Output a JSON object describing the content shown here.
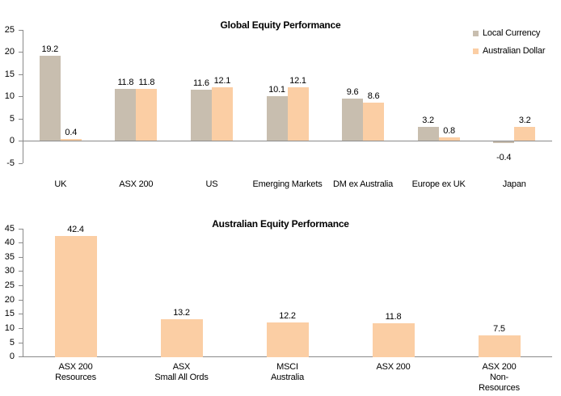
{
  "colors": {
    "local_currency": "#C8BEAF",
    "australian_dollar": "#FBCEA4",
    "axis_line": "#8A8A8A",
    "label_text": "#000000",
    "background": "#FFFFFF"
  },
  "chart_data": [
    {
      "type": "bar",
      "title": "Global Equity Performance",
      "categories": [
        "UK",
        "ASX 200",
        "US",
        "Emerging Markets",
        "DM ex Australia",
        "Europe ex UK",
        "Japan"
      ],
      "series": [
        {
          "name": "Local Currency",
          "color": "#C8BEAF",
          "values": [
            19.2,
            11.8,
            11.6,
            10.1,
            9.6,
            3.2,
            -0.4
          ]
        },
        {
          "name": "Australian Dollar",
          "color": "#FBCEA4",
          "values": [
            0.4,
            11.8,
            12.1,
            12.1,
            8.6,
            0.8,
            3.2
          ]
        }
      ],
      "ylim": [
        -5,
        25
      ],
      "yticks": [
        -5,
        0,
        5,
        10,
        15,
        20,
        25
      ],
      "grid": false,
      "legend_position": "top-right",
      "data_labels": true
    },
    {
      "type": "bar",
      "title": "Australian Equity Performance",
      "categories": [
        "ASX 200\nResources",
        "ASX\nSmall All Ords",
        "MSCI\nAustralia",
        "ASX 200",
        "ASX 200\nNon-\nResources"
      ],
      "series": [
        {
          "name": "Australian Dollar",
          "color": "#FBCEA4",
          "values": [
            42.4,
            13.2,
            12.2,
            11.8,
            7.5
          ]
        }
      ],
      "ylim": [
        0,
        45
      ],
      "yticks": [
        0,
        5,
        10,
        15,
        20,
        25,
        30,
        35,
        40,
        45
      ],
      "grid": false,
      "legend_position": "none",
      "data_labels": true
    }
  ]
}
